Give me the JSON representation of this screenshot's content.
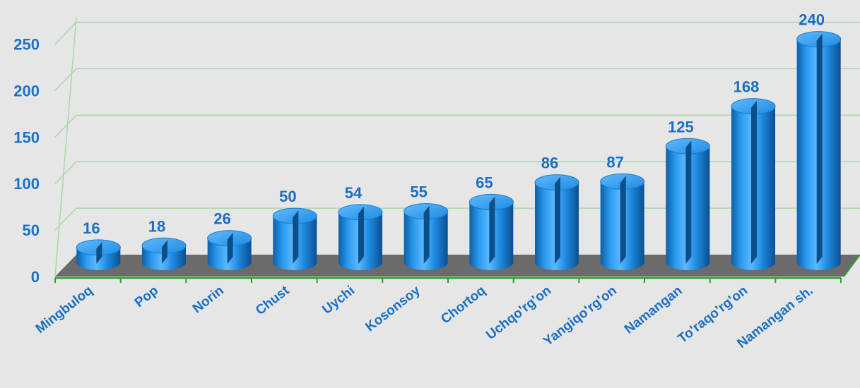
{
  "chart_data": {
    "type": "bar",
    "style": "3d-cylinder",
    "categories": [
      "Mingbuloq",
      "Pop",
      "Norin",
      "Chust",
      "Uychi",
      "Kosonsoy",
      "Chortoq",
      "Uchqo'rg'on",
      "Yangiqo'rg'on",
      "Namangan",
      "To'raqo'rg'on",
      "Namangan sh."
    ],
    "values": [
      16,
      18,
      26,
      50,
      54,
      55,
      65,
      86,
      87,
      125,
      168,
      240
    ],
    "ylim": [
      0,
      250
    ],
    "yticks": [
      0,
      50,
      100,
      150,
      200,
      250
    ],
    "grid": true,
    "legend": "none",
    "colors": {
      "bar": "#1e90e6",
      "bar_dark": "#0a4f8a",
      "label": "#1a6fc4",
      "grid": "#a8d8a8",
      "axis": "#2ca02c",
      "floor": "#6b6b6b"
    }
  }
}
